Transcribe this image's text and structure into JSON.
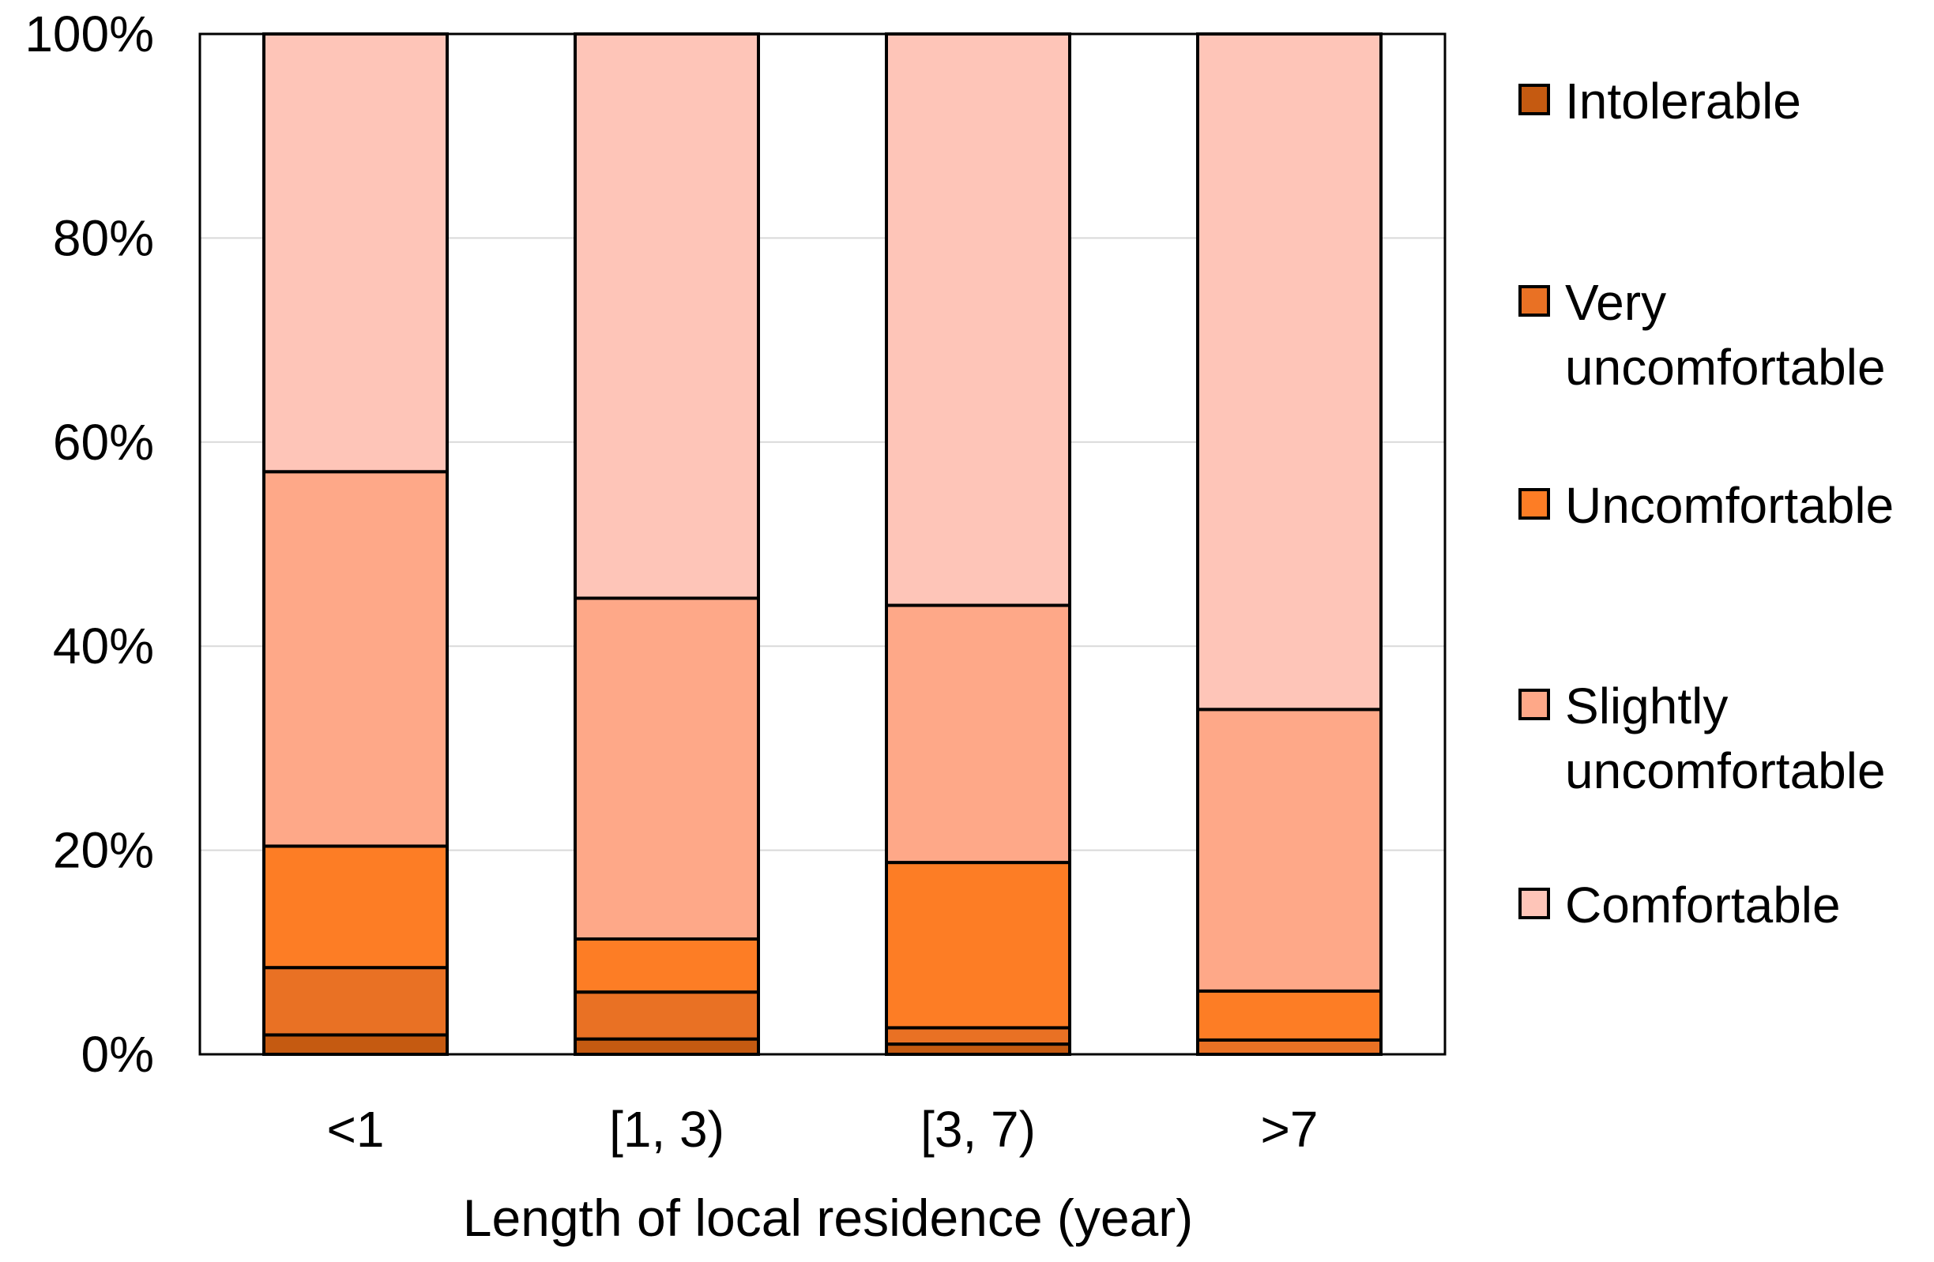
{
  "chart_data": {
    "type": "bar",
    "stacked": true,
    "percent": true,
    "title": "",
    "xlabel": "Length of local residence (year)",
    "ylabel": "",
    "ylim": [
      0,
      100
    ],
    "yticks": [
      0,
      20,
      40,
      60,
      80,
      100
    ],
    "ytick_labels": [
      "0%",
      "20%",
      "40%",
      "60%",
      "80%",
      "100%"
    ],
    "grid": true,
    "legend_position": "right",
    "categories": [
      "<1",
      "[1, 3)",
      "[3, 7)",
      ">7"
    ],
    "series": [
      {
        "name": "Intolerable",
        "color": "#C55A11",
        "values": [
          1.9,
          1.5,
          1.0,
          0.0
        ]
      },
      {
        "name": "Very uncomfortable",
        "color": "#E97124",
        "values": [
          6.6,
          4.6,
          1.6,
          1.4
        ]
      },
      {
        "name": "Uncomfortable",
        "color": "#FD7D25",
        "values": [
          11.9,
          5.2,
          16.2,
          4.8
        ]
      },
      {
        "name": "Slightly uncomfortable",
        "color": "#FEA888",
        "values": [
          36.7,
          33.4,
          25.2,
          27.6
        ]
      },
      {
        "name": "Comfortable",
        "color": "#FEC5B8",
        "values": [
          42.9,
          55.3,
          56.0,
          66.2
        ]
      }
    ],
    "legend_lines": [
      [
        "Intolerable"
      ],
      [
        "Very",
        "uncomfortable"
      ],
      [
        "Uncomfortable"
      ],
      [
        "Slightly",
        "uncomfortable"
      ],
      [
        "Comfortable"
      ]
    ]
  }
}
